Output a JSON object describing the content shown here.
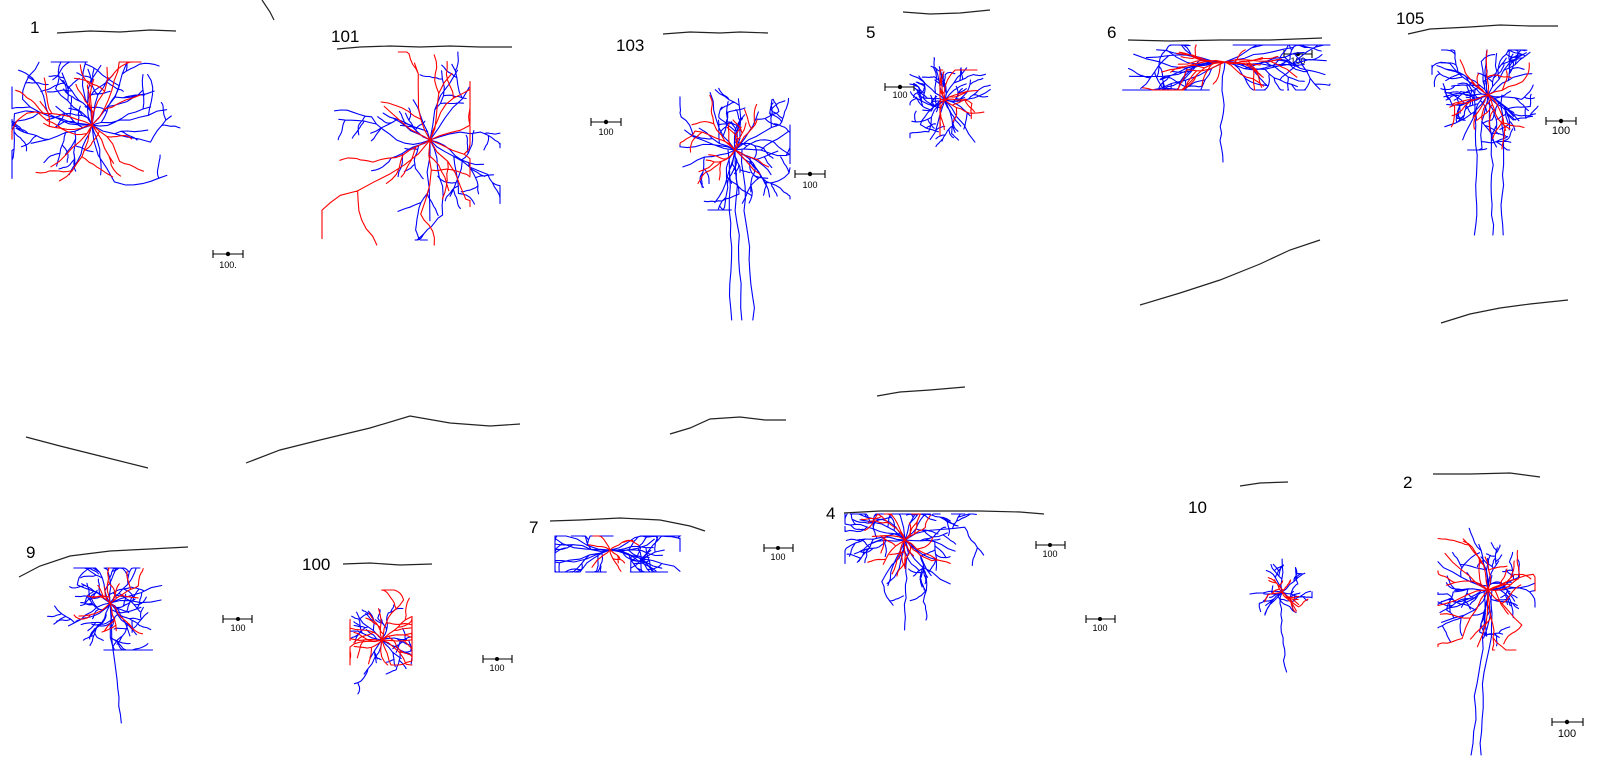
{
  "colors": {
    "axon": "#0000ff",
    "dendrite": "#ff0000",
    "pia": "#222222",
    "text": "#000000"
  },
  "cells": [
    {
      "id": "cell-1",
      "label": "1",
      "scale_label": "100."
    },
    {
      "id": "cell-101",
      "label": "101",
      "scale_label": ""
    },
    {
      "id": "cell-103",
      "label": "103",
      "scale_label": "100"
    },
    {
      "id": "cell-5",
      "label": "5",
      "scale_label": "100"
    },
    {
      "id": "cell-6",
      "label": "6",
      "scale_label": "100"
    },
    {
      "id": "cell-105",
      "label": "105",
      "scale_label": "100"
    },
    {
      "id": "cell-9",
      "label": "9",
      "scale_label": "100"
    },
    {
      "id": "cell-100",
      "label": "100",
      "scale_label": "100"
    },
    {
      "id": "cell-7",
      "label": "7",
      "scale_label": "100"
    },
    {
      "id": "cell-4",
      "label": "4",
      "scale_label": "100"
    },
    {
      "id": "cell-10",
      "label": "10",
      "scale_label": "100"
    },
    {
      "id": "cell-2",
      "label": "2",
      "scale_label": "100"
    }
  ],
  "extra_scale_labels": [
    "100",
    "100"
  ]
}
